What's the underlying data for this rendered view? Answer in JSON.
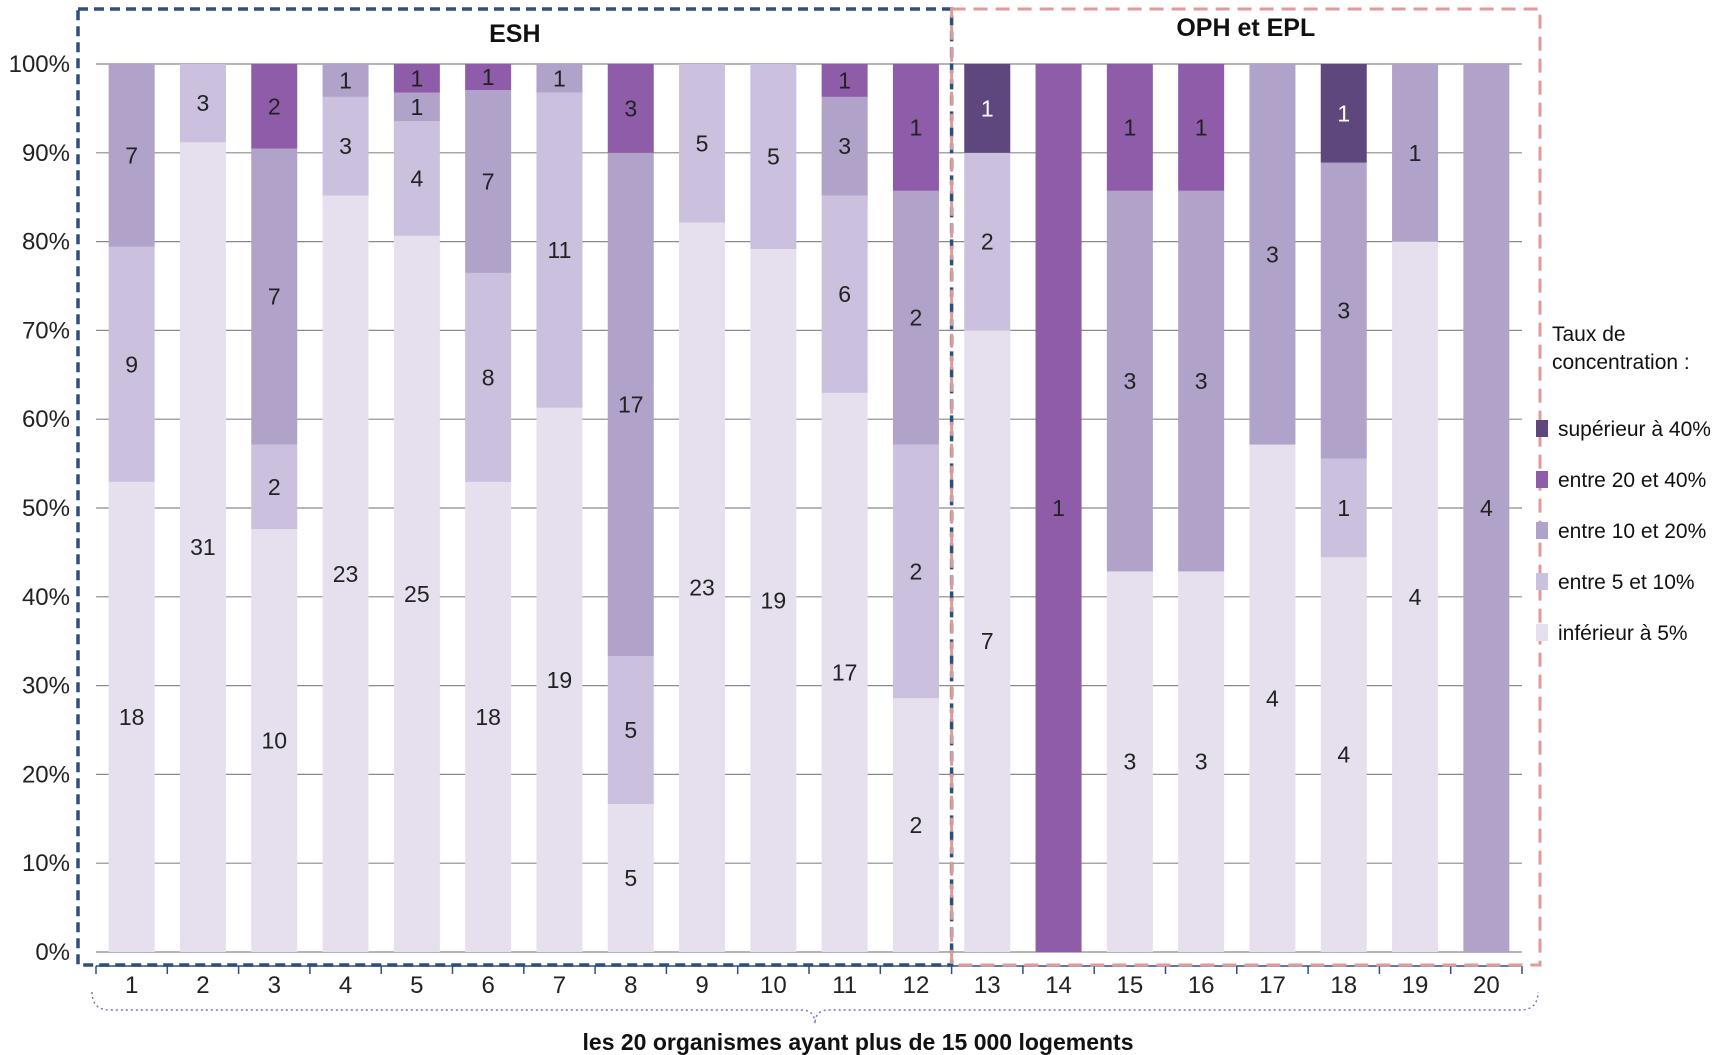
{
  "chart_data": {
    "type": "bar",
    "stacked": "percent",
    "categories": [
      "1",
      "2",
      "3",
      "4",
      "5",
      "6",
      "7",
      "8",
      "9",
      "10",
      "11",
      "12",
      "13",
      "14",
      "15",
      "16",
      "17",
      "18",
      "19",
      "20"
    ],
    "series": [
      {
        "name": "inférieur à 5%",
        "color": "#e6e0ee",
        "values": [
          18,
          31,
          10,
          23,
          25,
          18,
          19,
          5,
          23,
          19,
          17,
          2,
          7,
          0,
          3,
          3,
          4,
          4,
          4,
          0
        ]
      },
      {
        "name": "entre 5 et 10%",
        "color": "#cbc0dd",
        "values": [
          9,
          3,
          2,
          3,
          4,
          8,
          11,
          5,
          5,
          5,
          6,
          2,
          2,
          0,
          0,
          0,
          0,
          1,
          0,
          0
        ]
      },
      {
        "name": "entre 10 et 20%",
        "color": "#b1a2c9",
        "values": [
          7,
          0,
          7,
          1,
          1,
          7,
          1,
          17,
          0,
          0,
          3,
          2,
          0,
          0,
          3,
          3,
          3,
          3,
          1,
          4
        ]
      },
      {
        "name": "entre 20 et 40%",
        "color": "#8e5ca8",
        "values": [
          0,
          0,
          2,
          0,
          1,
          1,
          0,
          3,
          0,
          0,
          1,
          1,
          0,
          1,
          1,
          1,
          0,
          0,
          0,
          0
        ]
      },
      {
        "name": "supérieur à 40%",
        "color": "#5e477d",
        "values": [
          0,
          0,
          0,
          0,
          0,
          0,
          0,
          0,
          0,
          0,
          0,
          0,
          1,
          0,
          0,
          0,
          0,
          1,
          0,
          0
        ]
      }
    ],
    "y_ticks": [
      "0%",
      "10%",
      "20%",
      "30%",
      "40%",
      "50%",
      "60%",
      "70%",
      "80%",
      "90%",
      "100%"
    ],
    "ylim": [
      0,
      100
    ],
    "grid": true,
    "groups": [
      {
        "title": "ESH",
        "from": 1,
        "to": 12,
        "color": "#2e4e7e"
      },
      {
        "title": "OPH et EPL",
        "from": 13,
        "to": 20,
        "color": "#e09a9a"
      }
    ],
    "legend": {
      "title_lines": [
        "Taux de",
        "concentration :"
      ],
      "position": "right",
      "order": [
        "supérieur à 40%",
        "entre 20 et 40%",
        "entre 10 et 20%",
        "entre 5 et 10%",
        "inférieur à 5%"
      ]
    },
    "xlabel": "les 20 organismes ayant plus de 15 000 logements"
  }
}
